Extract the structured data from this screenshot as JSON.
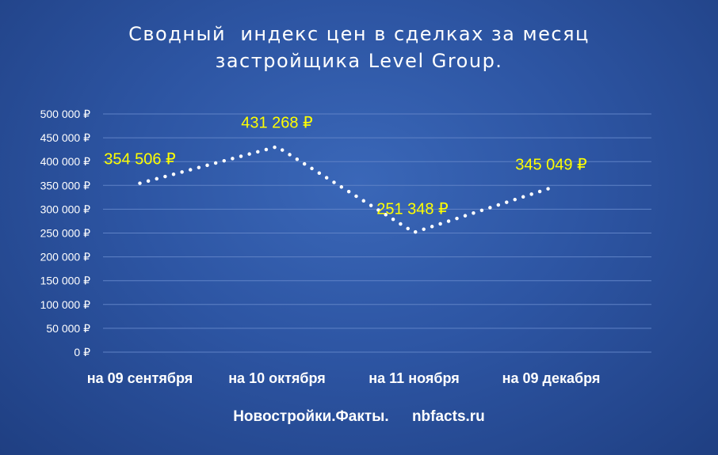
{
  "chart_data": {
    "type": "line",
    "title": "Сводный  индекс цен в сделках за месяц\nзастройщика Level Group.",
    "categories": [
      "на 09 сентября",
      "на 10 октября",
      "на 11 ноября",
      "на 09 декабря"
    ],
    "series": [
      {
        "values": [
          354506,
          431268,
          251348,
          345049
        ],
        "data_labels": [
          "354 506 ₽",
          "431 268 ₽",
          "251 348 ₽",
          "345 049 ₽"
        ]
      }
    ],
    "ylim": [
      0,
      500000
    ],
    "y_ticks": [
      "0 ₽",
      "50 000 ₽",
      "100 000 ₽",
      "150 000 ₽",
      "200 000 ₽",
      "250 000 ₽",
      "300 000 ₽",
      "350 000 ₽",
      "400 000 ₽",
      "450 000 ₽",
      "500 000 ₽"
    ],
    "grid": true,
    "line_style": "dotted",
    "colors": {
      "line": "#ffffff",
      "data_label": "#ffff00",
      "grid": "#5f82c6",
      "text": "#ffffff"
    }
  },
  "footer": {
    "source_name": "Новостройки.Факты.",
    "source_url": "nbfacts.ru"
  }
}
